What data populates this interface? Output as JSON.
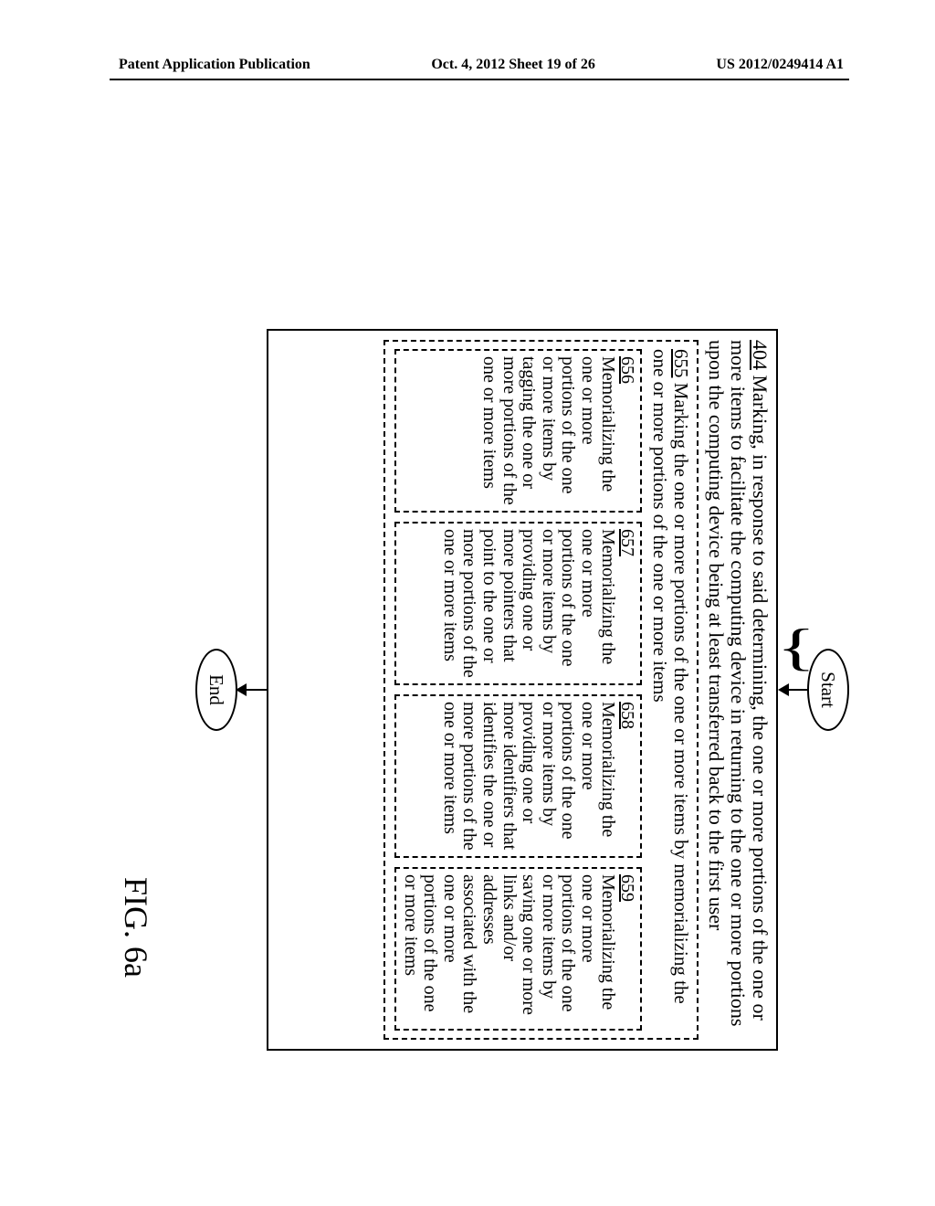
{
  "header": {
    "left": "Patent Application Publication",
    "center": "Oct. 4, 2012  Sheet 19 of 26",
    "right": "US 2012/0249414 A1"
  },
  "flow": {
    "start": "Start",
    "end": "End"
  },
  "outer": {
    "ref": "404",
    "text": " Marking, in response to said determining, the one or more portions of the one or more items to facilitate the computing device in returning to the one or more portions upon the computing device being at least transferred back to the first user"
  },
  "box655": {
    "ref": "655",
    "text": "  Marking the one or more portions of the one or more items by memorializing the one or more portions of the one or more items"
  },
  "box656": {
    "ref": "656",
    "text": "Memorializing the one or more portions of the one or more items by tagging the one or more portions of the one or more items"
  },
  "box657": {
    "ref": "657",
    "text": "Memorializing the one or more portions of the one or more items by providing one or more pointers that point to the one or more portions of the one or more items"
  },
  "box658": {
    "ref": "658",
    "text": "Memorializing the one or more portions of the one or more items by providing one or more identifiers that identifies the one or more portions of the one or more items"
  },
  "box659": {
    "ref": "659",
    "text": "Memorializing the one or more portions of the one or more items by saving one or more links and/or addresses associated with the one or more portions of the one or more items"
  },
  "figure_label": "FIG. 6a"
}
